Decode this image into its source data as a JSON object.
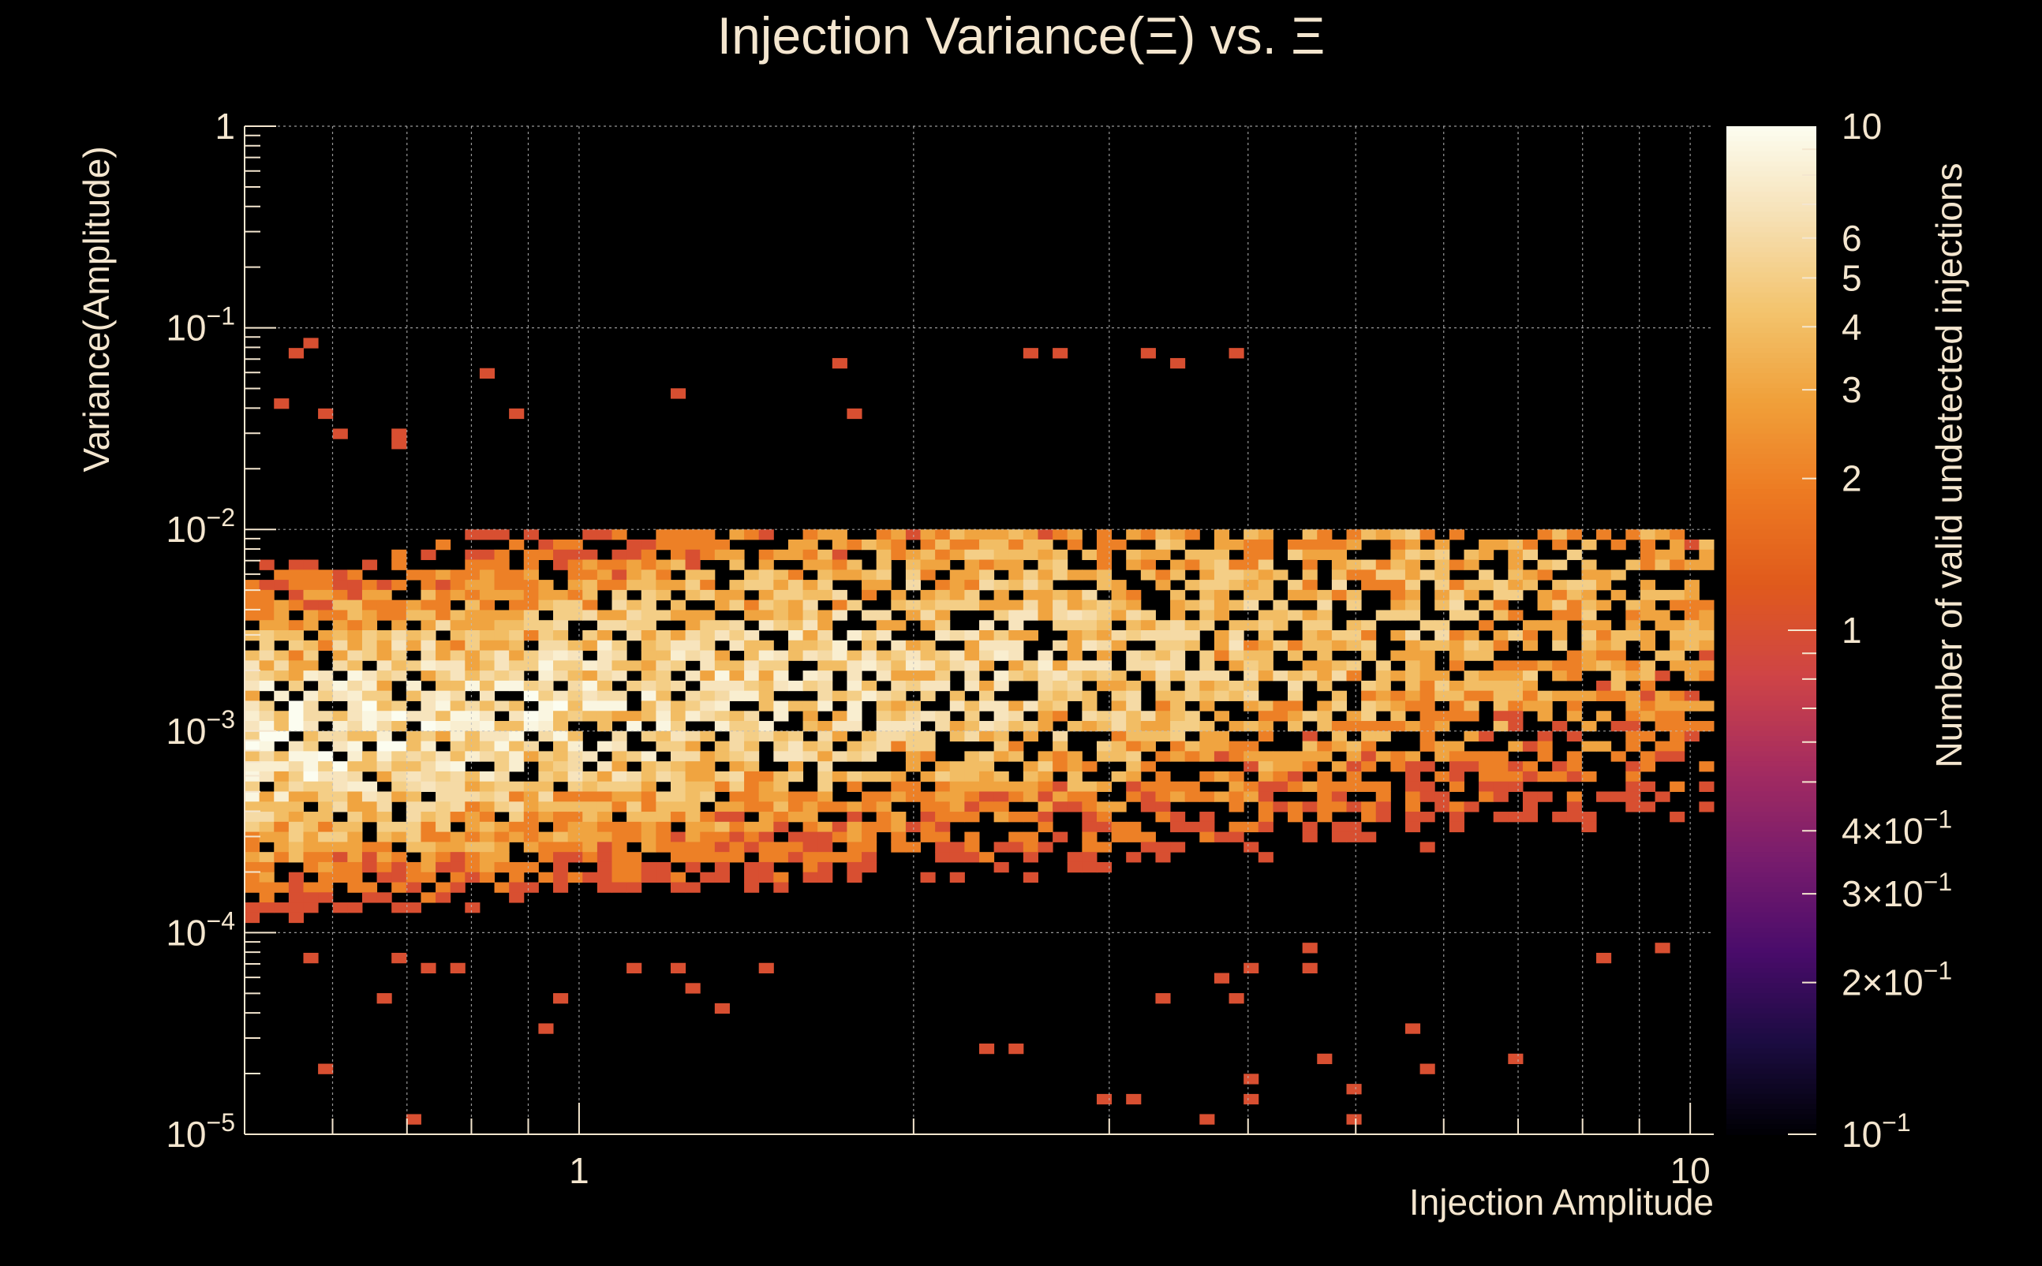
{
  "chart_data": {
    "type": "heatmap",
    "title": "Injection Variance(Ξ) vs. Ξ",
    "xlabel": "Injection Amplitude",
    "ylabel": "Variance(Amplitude)",
    "colorbar_label": "Number of valid undetected injections",
    "x_scale": "log",
    "y_scale": "log",
    "z_scale": "log",
    "xlim": [
      0.5,
      10.5
    ],
    "ylim": [
      1e-05,
      1
    ],
    "zlim": [
      0.1,
      10
    ],
    "x_ticks": [
      {
        "value": 1,
        "label": "1"
      },
      {
        "value": 10,
        "label": "10"
      }
    ],
    "y_ticks": [
      {
        "value": 1e-05,
        "base": "10",
        "exp": "−5"
      },
      {
        "value": 0.0001,
        "base": "10",
        "exp": "−4"
      },
      {
        "value": 0.001,
        "base": "10",
        "exp": "−3"
      },
      {
        "value": 0.01,
        "base": "10",
        "exp": "−2"
      },
      {
        "value": 0.1,
        "base": "10",
        "exp": "−1"
      },
      {
        "value": 1,
        "base": "1",
        "exp": ""
      }
    ],
    "z_ticks": [
      {
        "value": 10,
        "base": "10",
        "exp": ""
      },
      {
        "value": 6,
        "base": "6",
        "exp": ""
      },
      {
        "value": 5,
        "base": "5",
        "exp": ""
      },
      {
        "value": 4,
        "base": "4",
        "exp": ""
      },
      {
        "value": 3,
        "base": "3",
        "exp": ""
      },
      {
        "value": 2,
        "base": "2",
        "exp": ""
      },
      {
        "value": 1,
        "base": "1",
        "exp": ""
      },
      {
        "value": 0.4,
        "base": "4×10",
        "exp": "−1"
      },
      {
        "value": 0.3,
        "base": "3×10",
        "exp": "−1"
      },
      {
        "value": 0.2,
        "base": "2×10",
        "exp": "−1"
      },
      {
        "value": 0.1,
        "base": "10",
        "exp": "−1"
      }
    ],
    "grid": true,
    "legend": "colorbar-right",
    "bins": {
      "nx": 100,
      "ny": 100
    },
    "colormap": [
      "#000004",
      "#1b0c41",
      "#4a0c6b",
      "#781c6d",
      "#a52c60",
      "#cf4446",
      "#e05a1c",
      "#ed7a22",
      "#f0a03a",
      "#f3c46e",
      "#f6e0b4",
      "#fcfdf0"
    ],
    "colors": {
      "background": "#000000",
      "text": "#f4e6cf",
      "axis": "#f4e6cf",
      "grid": "#bdbdbd"
    },
    "density_description": "Counts of valid undetected injections per (amplitude, variance) bin. Dense core near variance 3e-4 to 3e-3 with counts up to ~8 at amplitude 0.5-2, spreading to a broad 1e-4 to 1e-2 band with counts 1-4 at higher amplitudes; sparse outliers between 1e-5 and 8e-2."
  }
}
